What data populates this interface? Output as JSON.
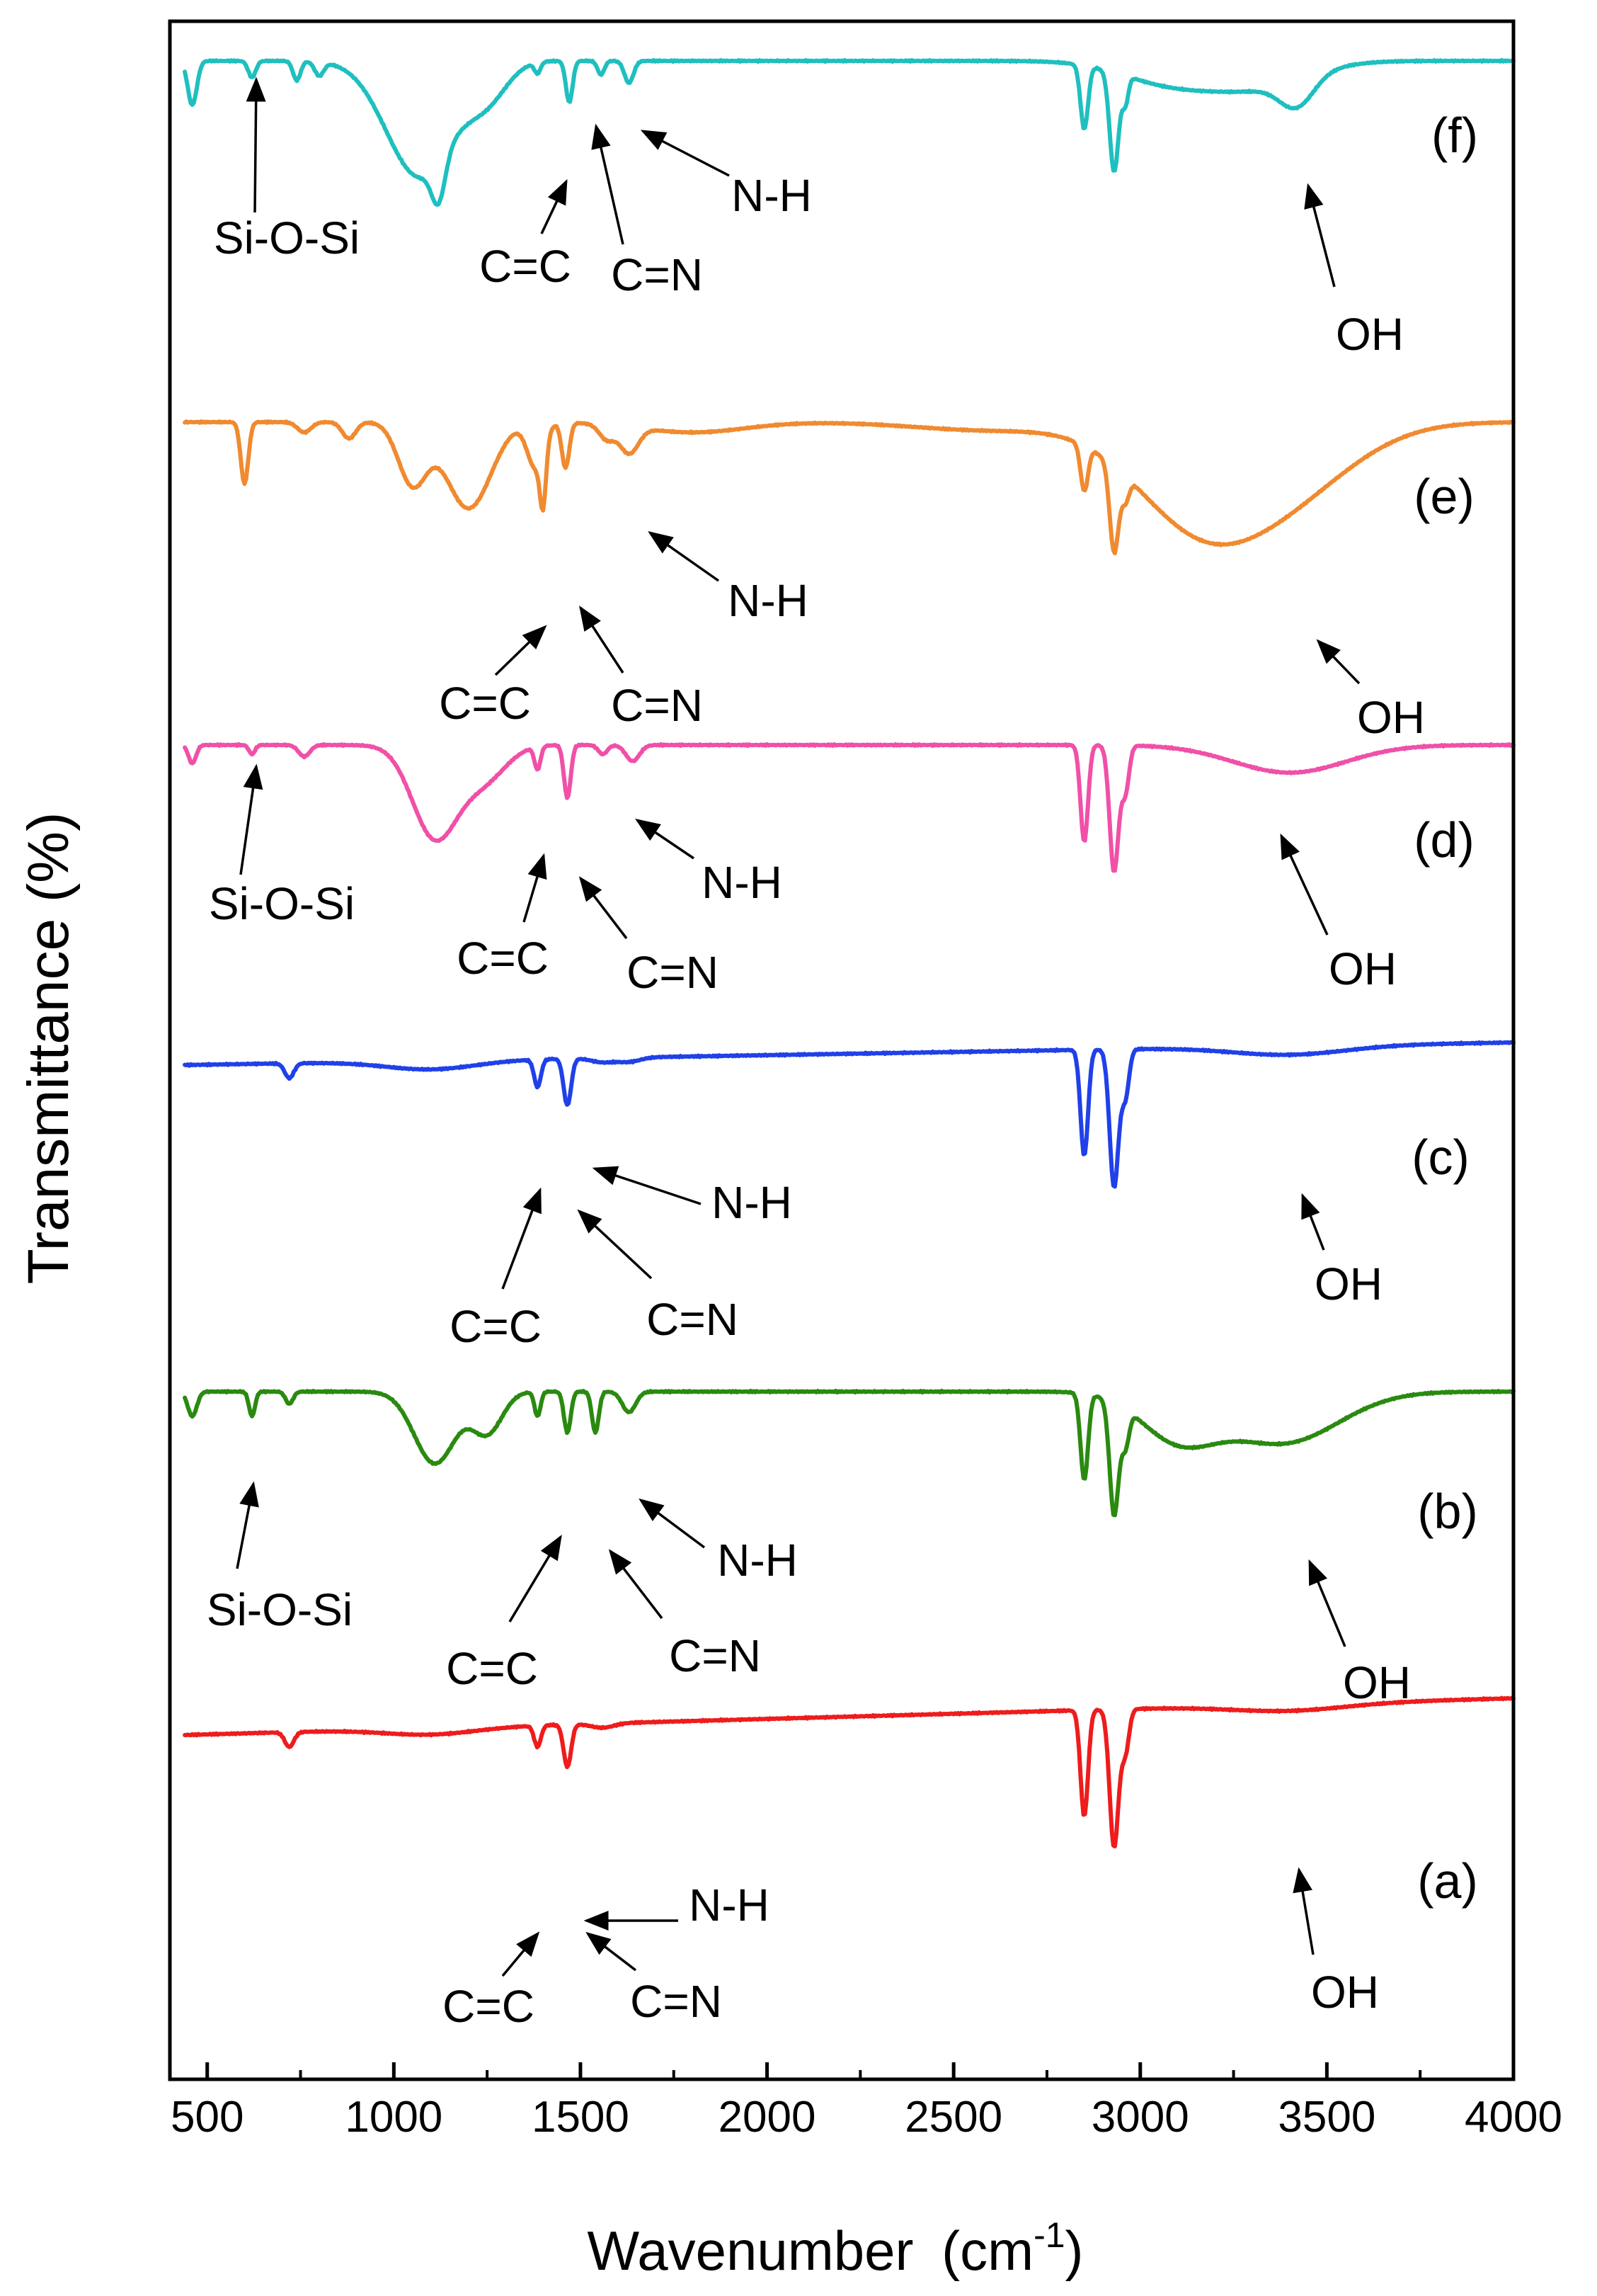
{
  "chart_data": {
    "type": "line",
    "title": "",
    "xlabel": "Wavenumber",
    "xlabel_unit_base": "cm",
    "xlabel_unit_exp": "-1",
    "ylabel": "Transmittance (%)",
    "xlim": [
      400,
      4000
    ],
    "xticks": [
      500,
      1000,
      1500,
      2000,
      2500,
      3000,
      3500,
      4000
    ],
    "yaxis_ticks": "none",
    "grid": false,
    "legend": "none",
    "series": [
      {
        "name": "(f)",
        "color": "#1fbfbf",
        "offset": 86,
        "scale": 390,
        "bands": [
          [
            460,
            -0.06,
            0.16,
            12
          ],
          [
            620,
            0.02,
            0.06,
            10
          ],
          [
            740,
            0.02,
            0.07,
            10
          ],
          [
            800,
            0.03,
            0.05,
            12
          ],
          [
            1070,
            0.25,
            0.42,
            90
          ],
          [
            1120,
            0.04,
            0.15,
            18
          ],
          [
            1250,
            0.04,
            0.12,
            55
          ],
          [
            1385,
            0.06,
            0.04,
            8
          ],
          [
            1470,
            0.07,
            0.15,
            9
          ],
          [
            1555,
            0.06,
            0.05,
            9
          ],
          [
            1630,
            0.07,
            0.08,
            12
          ],
          [
            2850,
            -0.05,
            0.23,
            10
          ],
          [
            2930,
            -0.02,
            0.36,
            12
          ],
          [
            2960,
            -0.02,
            0.1,
            8
          ],
          [
            3080,
            -0.04,
            0.08,
            130
          ],
          [
            3320,
            0.02,
            0.09,
            130
          ],
          [
            3420,
            0.02,
            0.1,
            45
          ]
        ]
      },
      {
        "name": "(e)",
        "color": "#f08a30",
        "offset": 596,
        "scale": 290,
        "bands": [
          [
            600,
            0.01,
            0.3,
            10
          ],
          [
            760,
            0.02,
            0.05,
            18
          ],
          [
            880,
            0.03,
            0.08,
            18
          ],
          [
            1050,
            0.1,
            0.3,
            38
          ],
          [
            1200,
            0.1,
            0.42,
            60
          ],
          [
            1380,
            0.09,
            0.22,
            22
          ],
          [
            1400,
            0.09,
            0.28,
            8
          ],
          [
            1460,
            0.1,
            0.22,
            10
          ],
          [
            1570,
            0.06,
            0.07,
            20
          ],
          [
            1630,
            0.05,
            0.13,
            25
          ],
          [
            1800,
            0.0,
            0.05,
            140
          ],
          [
            2600,
            0.0,
            0.04,
            200
          ],
          [
            2850,
            0.0,
            0.22,
            10
          ],
          [
            2930,
            0.0,
            0.42,
            12
          ],
          [
            2960,
            0.0,
            0.12,
            10
          ],
          [
            3150,
            0.0,
            0.45,
            170
          ],
          [
            3400,
            0.0,
            0.3,
            180
          ]
        ]
      },
      {
        "name": "(d)",
        "color": "#f050a8",
        "offset": 1052,
        "scale": 325,
        "bands": [
          [
            460,
            -0.05,
            0.08,
            10
          ],
          [
            620,
            0.02,
            0.04,
            8
          ],
          [
            760,
            0.02,
            0.05,
            15
          ],
          [
            1110,
            0.15,
            0.4,
            60
          ],
          [
            1240,
            0.14,
            0.15,
            60
          ],
          [
            1385,
            0.12,
            0.1,
            8
          ],
          [
            1465,
            0.12,
            0.23,
            9
          ],
          [
            1560,
            0.08,
            0.04,
            12
          ],
          [
            1640,
            0.06,
            0.07,
            18
          ],
          [
            2850,
            -0.02,
            0.42,
            10
          ],
          [
            2930,
            -0.02,
            0.55,
            12
          ],
          [
            2960,
            -0.02,
            0.2,
            10
          ],
          [
            3400,
            0.0,
            0.12,
            150
          ]
        ]
      },
      {
        "name": "(c)",
        "color": "#2040e8",
        "offset": 1486,
        "scale": 300,
        "bands": [
          [
            720,
            0.01,
            0.07,
            12
          ],
          [
            1100,
            0.0,
            0.04,
            120
          ],
          [
            1385,
            0.1,
            0.13,
            9
          ],
          [
            1465,
            0.1,
            0.22,
            10
          ],
          [
            1560,
            0.1,
            0.02,
            30
          ],
          [
            1630,
            0.1,
            0.02,
            30
          ],
          [
            2850,
            0.0,
            0.5,
            10
          ],
          [
            2930,
            0.0,
            0.65,
            12
          ],
          [
            2960,
            0.0,
            0.22,
            10
          ],
          [
            3400,
            0.0,
            0.04,
            150
          ]
        ]
      },
      {
        "name": "(b)",
        "color": "#2a8a10",
        "offset": 1965,
        "scale": 290,
        "bands": [
          [
            460,
            -0.04,
            0.12,
            12
          ],
          [
            620,
            0.02,
            0.12,
            8
          ],
          [
            720,
            0.02,
            0.06,
            10
          ],
          [
            1110,
            0.15,
            0.35,
            55
          ],
          [
            1250,
            0.14,
            0.2,
            40
          ],
          [
            1385,
            0.12,
            0.12,
            8
          ],
          [
            1465,
            0.12,
            0.2,
            9
          ],
          [
            1540,
            0.12,
            0.2,
            9
          ],
          [
            1630,
            0.1,
            0.1,
            18
          ],
          [
            2850,
            0.0,
            0.42,
            10
          ],
          [
            2930,
            0.0,
            0.55,
            12
          ],
          [
            2960,
            0.0,
            0.18,
            10
          ],
          [
            3100,
            0.0,
            0.22,
            100
          ],
          [
            3380,
            0.0,
            0.25,
            150
          ]
        ]
      },
      {
        "name": "(a)",
        "color": "#ee1c1c",
        "offset": 2432,
        "scale": 300,
        "bands": [
          [
            720,
            0.01,
            0.07,
            12
          ],
          [
            1100,
            0.0,
            0.03,
            120
          ],
          [
            1385,
            0.12,
            0.1,
            9
          ],
          [
            1465,
            0.12,
            0.2,
            10
          ],
          [
            1560,
            0.12,
            0.02,
            30
          ],
          [
            2850,
            0.0,
            0.5,
            10
          ],
          [
            2930,
            0.0,
            0.65,
            12
          ],
          [
            2960,
            0.0,
            0.2,
            10
          ],
          [
            3400,
            0.0,
            0.03,
            150
          ]
        ]
      }
    ],
    "annotations": [
      {
        "panel": "(f)",
        "label": "(f)",
        "tag": true
      },
      {
        "panel": "(f)",
        "label": "Si-O-Si",
        "peak": 620
      },
      {
        "panel": "(f)",
        "label": "C=C",
        "peak": 1470
      },
      {
        "panel": "(f)",
        "label": "C=N",
        "peak": 1555
      },
      {
        "panel": "(f)",
        "label": "N-H",
        "peak": 1630
      },
      {
        "panel": "(f)",
        "label": "OH",
        "peak": 3420
      },
      {
        "panel": "(e)",
        "label": "(e)",
        "tag": true
      },
      {
        "panel": "(e)",
        "label": "C=C",
        "peak": 1400
      },
      {
        "panel": "(e)",
        "label": "C=N",
        "peak": 1460
      },
      {
        "panel": "(e)",
        "label": "N-H",
        "peak": 1630
      },
      {
        "panel": "(e)",
        "label": "OH",
        "peak": 3420
      },
      {
        "panel": "(d)",
        "label": "(d)",
        "tag": true
      },
      {
        "panel": "(d)",
        "label": "Si-O-Si",
        "peak": 620
      },
      {
        "panel": "(d)",
        "label": "C=C",
        "peak": 1385
      },
      {
        "panel": "(d)",
        "label": "C=N",
        "peak": 1465
      },
      {
        "panel": "(d)",
        "label": "N-H",
        "peak": 1640
      },
      {
        "panel": "(d)",
        "label": "OH",
        "peak": 3400
      },
      {
        "panel": "(c)",
        "label": "(c)",
        "tag": true
      },
      {
        "panel": "(c)",
        "label": "C=C",
        "peak": 1385
      },
      {
        "panel": "(c)",
        "label": "C=N",
        "peak": 1465
      },
      {
        "panel": "(c)",
        "label": "N-H",
        "peak": 1510
      },
      {
        "panel": "(c)",
        "label": "OH",
        "peak": 3400
      },
      {
        "panel": "(b)",
        "label": "(b)",
        "tag": true
      },
      {
        "panel": "(b)",
        "label": "Si-O-Si",
        "peak": 620
      },
      {
        "panel": "(b)",
        "label": "C=C",
        "peak": 1465
      },
      {
        "panel": "(b)",
        "label": "C=N",
        "peak": 1540
      },
      {
        "panel": "(b)",
        "label": "N-H",
        "peak": 1630
      },
      {
        "panel": "(b)",
        "label": "OH",
        "peak": 3380
      },
      {
        "panel": "(a)",
        "label": "(a)",
        "tag": true
      },
      {
        "panel": "(a)",
        "label": "C=C",
        "peak": 1385
      },
      {
        "panel": "(a)",
        "label": "C=N",
        "peak": 1465
      },
      {
        "panel": "(a)",
        "label": "N-H",
        "peak": 1465
      },
      {
        "panel": "(a)",
        "label": "OH",
        "peak": 3400
      }
    ]
  }
}
